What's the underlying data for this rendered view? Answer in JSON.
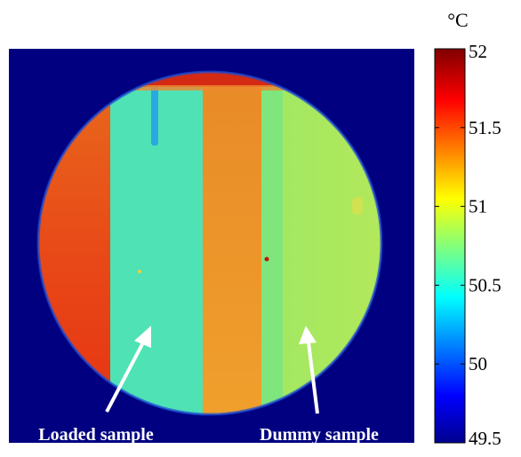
{
  "labels": {
    "loaded_sample": "Loaded sample",
    "dummy_sample": "Dummy sample"
  },
  "colorbar": {
    "unit": "°C",
    "min": 49.5,
    "max": 52,
    "ticks": [
      "52",
      "51.5",
      "51",
      "50.5",
      "50",
      "49.5"
    ],
    "tick_values": [
      52,
      51.5,
      51,
      50.5,
      50,
      49.5
    ],
    "colormap": [
      "#00008f",
      "#0000ff",
      "#00ffff",
      "#ffff00",
      "#ff0000",
      "#800000"
    ]
  },
  "colors": {
    "background": "#000080",
    "hot_segment": "#e8501a",
    "cool_strip": "#45e0b8",
    "warm_strip": "#ef9a2a",
    "cool_region": "#8fe66c",
    "rim": "#c41a10"
  }
}
